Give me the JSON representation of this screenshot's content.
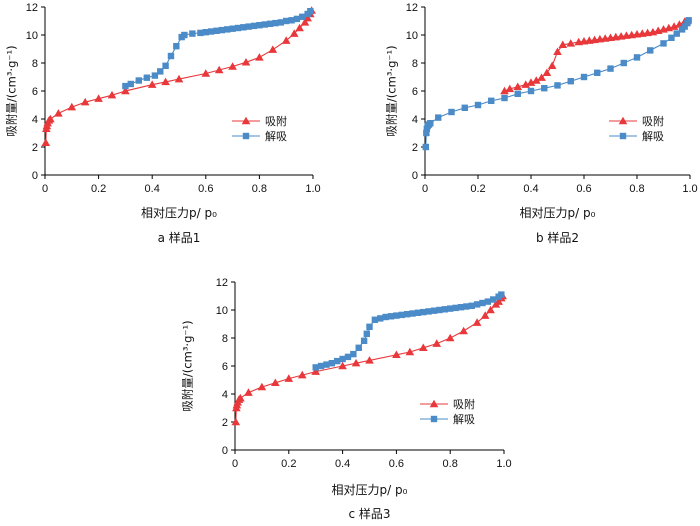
{
  "figure": {
    "y_label": "吸附量/(cm³·g⁻¹)",
    "x_label": "相对压力p/ p₀"
  },
  "chart_data": [
    {
      "type": "line",
      "caption": "a  样品1",
      "xlabel": "相对压力p/ p₀",
      "ylabel": "吸附量/(cm³·g⁻¹)",
      "xlim": [
        0,
        1.0
      ],
      "ylim": [
        0,
        12
      ],
      "xticks": [
        0,
        0.2,
        0.4,
        0.6,
        0.8,
        1.0
      ],
      "xtick_labels": [
        "0",
        "0.2",
        "0.4",
        "0.6",
        "0.8",
        "1.0"
      ],
      "yticks": [
        0,
        2,
        4,
        6,
        8,
        10,
        12
      ],
      "ytick_labels": [
        "0",
        "2",
        "4",
        "6",
        "8",
        "10",
        "12"
      ],
      "legend_position": "right",
      "series": [
        {
          "name": "吸附",
          "marker": "triangle",
          "color": "#e8383b",
          "x": [
            0.003,
            0.005,
            0.007,
            0.01,
            0.015,
            0.02,
            0.05,
            0.1,
            0.15,
            0.2,
            0.25,
            0.3,
            0.4,
            0.45,
            0.5,
            0.6,
            0.65,
            0.7,
            0.75,
            0.8,
            0.85,
            0.9,
            0.93,
            0.95,
            0.97,
            0.98,
            0.99,
            0.995
          ],
          "y": [
            2.3,
            3.3,
            3.5,
            3.7,
            3.9,
            4.0,
            4.4,
            4.85,
            5.2,
            5.45,
            5.7,
            6.0,
            6.45,
            6.65,
            6.85,
            7.25,
            7.5,
            7.75,
            8.05,
            8.4,
            8.95,
            9.6,
            10.1,
            10.5,
            10.9,
            11.2,
            11.5,
            11.75
          ]
        },
        {
          "name": "解吸",
          "marker": "square",
          "color": "#4a8bc8",
          "x": [
            0.3,
            0.32,
            0.35,
            0.38,
            0.41,
            0.43,
            0.45,
            0.47,
            0.49,
            0.51,
            0.52,
            0.55,
            0.58,
            0.6,
            0.62,
            0.64,
            0.66,
            0.68,
            0.7,
            0.72,
            0.74,
            0.76,
            0.78,
            0.8,
            0.82,
            0.84,
            0.86,
            0.88,
            0.9,
            0.92,
            0.94,
            0.96,
            0.98,
            0.99
          ],
          "y": [
            6.35,
            6.5,
            6.75,
            6.95,
            7.1,
            7.4,
            7.8,
            8.5,
            9.2,
            9.85,
            10.0,
            10.1,
            10.15,
            10.2,
            10.25,
            10.3,
            10.35,
            10.4,
            10.45,
            10.5,
            10.55,
            10.6,
            10.65,
            10.7,
            10.75,
            10.8,
            10.85,
            10.9,
            11.0,
            11.05,
            11.15,
            11.3,
            11.5,
            11.7
          ]
        }
      ]
    },
    {
      "type": "line",
      "caption": "b  样品2",
      "xlabel": "相对压力p/ p₀",
      "ylabel": "吸附量/(cm³·g⁻¹)",
      "xlim": [
        0,
        1.0
      ],
      "ylim": [
        0,
        12
      ],
      "xticks": [
        0,
        0.2,
        0.4,
        0.6,
        0.8,
        1.0
      ],
      "xtick_labels": [
        "0",
        "0.2",
        "0.4",
        "0.6",
        "0.8",
        "1.0"
      ],
      "yticks": [
        0,
        2,
        4,
        6,
        8,
        10,
        12
      ],
      "ytick_labels": [
        "0",
        "2",
        "4",
        "6",
        "8",
        "10",
        "12"
      ],
      "legend_position": "right",
      "series": [
        {
          "name": "吸附",
          "marker": "triangle",
          "color": "#e8383b",
          "x": [
            0.3,
            0.32,
            0.35,
            0.38,
            0.4,
            0.42,
            0.44,
            0.46,
            0.48,
            0.5,
            0.52,
            0.55,
            0.58,
            0.6,
            0.62,
            0.64,
            0.66,
            0.68,
            0.7,
            0.72,
            0.74,
            0.76,
            0.78,
            0.8,
            0.82,
            0.84,
            0.86,
            0.88,
            0.9,
            0.92,
            0.94,
            0.96,
            0.98,
            0.99
          ],
          "y": [
            6.0,
            6.15,
            6.3,
            6.45,
            6.6,
            6.75,
            6.95,
            7.3,
            7.8,
            8.8,
            9.3,
            9.4,
            9.5,
            9.55,
            9.6,
            9.65,
            9.7,
            9.75,
            9.8,
            9.85,
            9.9,
            9.95,
            10.0,
            10.05,
            10.1,
            10.15,
            10.2,
            10.3,
            10.4,
            10.5,
            10.6,
            10.75,
            10.95,
            11.0
          ]
        },
        {
          "name": "解吸",
          "marker": "square",
          "color": "#4a8bc8",
          "x": [
            0.003,
            0.005,
            0.007,
            0.01,
            0.015,
            0.02,
            0.05,
            0.1,
            0.15,
            0.2,
            0.25,
            0.3,
            0.35,
            0.4,
            0.45,
            0.5,
            0.55,
            0.6,
            0.65,
            0.7,
            0.75,
            0.8,
            0.85,
            0.9,
            0.93,
            0.95,
            0.97,
            0.98,
            0.99,
            0.995
          ],
          "y": [
            2.0,
            3.0,
            3.3,
            3.5,
            3.6,
            3.7,
            4.1,
            4.5,
            4.8,
            5.0,
            5.3,
            5.5,
            5.8,
            6.0,
            6.2,
            6.4,
            6.7,
            7.0,
            7.3,
            7.6,
            8.0,
            8.4,
            8.9,
            9.4,
            9.8,
            10.1,
            10.4,
            10.6,
            10.85,
            11.05
          ]
        }
      ]
    },
    {
      "type": "line",
      "caption": "c  样品3",
      "xlabel": "相对压力p/ p₀",
      "ylabel": "吸附量/(cm³·g⁻¹)",
      "xlim": [
        0,
        1.0
      ],
      "ylim": [
        0,
        12
      ],
      "xticks": [
        0,
        0.2,
        0.4,
        0.6,
        0.8,
        1.0
      ],
      "xtick_labels": [
        "0",
        "0.2",
        "0.4",
        "0.6",
        "0.8",
        "1.0"
      ],
      "yticks": [
        0,
        2,
        4,
        6,
        8,
        10,
        12
      ],
      "ytick_labels": [
        "0",
        "2",
        "4",
        "6",
        "8",
        "10",
        "12"
      ],
      "legend_position": "right",
      "series": [
        {
          "name": "吸附",
          "marker": "triangle",
          "color": "#e8383b",
          "x": [
            0.003,
            0.005,
            0.007,
            0.01,
            0.015,
            0.02,
            0.05,
            0.1,
            0.15,
            0.2,
            0.25,
            0.3,
            0.4,
            0.45,
            0.5,
            0.6,
            0.65,
            0.7,
            0.75,
            0.8,
            0.85,
            0.9,
            0.93,
            0.95,
            0.97,
            0.98,
            0.99,
            0.995
          ],
          "y": [
            2.0,
            3.0,
            3.2,
            3.4,
            3.6,
            3.7,
            4.1,
            4.5,
            4.8,
            5.1,
            5.35,
            5.6,
            6.0,
            6.2,
            6.4,
            6.8,
            7.0,
            7.3,
            7.6,
            8.0,
            8.5,
            9.1,
            9.6,
            10.0,
            10.4,
            10.6,
            10.85,
            11.0
          ]
        },
        {
          "name": "解吸",
          "marker": "square",
          "color": "#4a8bc8",
          "x": [
            0.3,
            0.32,
            0.34,
            0.36,
            0.38,
            0.4,
            0.42,
            0.44,
            0.46,
            0.48,
            0.49,
            0.5,
            0.52,
            0.54,
            0.56,
            0.58,
            0.6,
            0.62,
            0.64,
            0.66,
            0.68,
            0.7,
            0.72,
            0.74,
            0.76,
            0.78,
            0.8,
            0.82,
            0.84,
            0.86,
            0.88,
            0.9,
            0.92,
            0.94,
            0.96,
            0.98,
            0.99
          ],
          "y": [
            5.9,
            6.0,
            6.1,
            6.2,
            6.35,
            6.5,
            6.65,
            6.85,
            7.3,
            7.8,
            8.3,
            8.8,
            9.3,
            9.4,
            9.5,
            9.55,
            9.6,
            9.65,
            9.7,
            9.75,
            9.8,
            9.85,
            9.9,
            9.95,
            10.0,
            10.05,
            10.1,
            10.15,
            10.2,
            10.25,
            10.3,
            10.4,
            10.5,
            10.6,
            10.75,
            10.95,
            11.1
          ]
        }
      ]
    }
  ]
}
